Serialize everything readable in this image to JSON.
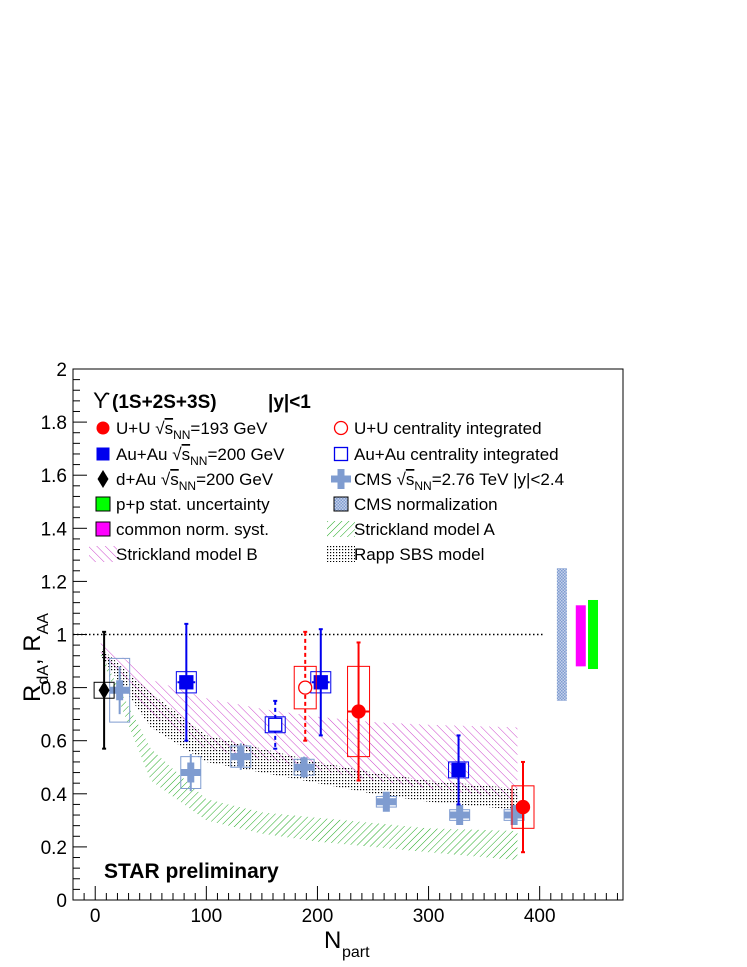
{
  "chart_data": {
    "type": "scatter",
    "title": "",
    "xlabel": {
      "main": "N",
      "sub": "part"
    },
    "ylabel": {
      "part1": "R",
      "sub1": "dA",
      "sep": ", R",
      "sub2": "AA"
    },
    "xlim": [
      -20,
      475
    ],
    "ylim": [
      0,
      2
    ],
    "xticks": [
      0,
      100,
      200,
      300,
      400
    ],
    "yticks": [
      0,
      0.2,
      0.4,
      0.6,
      0.8,
      1,
      1.2,
      1.4,
      1.6,
      1.8,
      2
    ],
    "reference_line": 1,
    "header": {
      "upsilon": "ϒ",
      "state": "(1S+2S+3S)",
      "rapidity": "|y|<1"
    },
    "annotation": "STAR preliminary",
    "legend": [
      {
        "id": "uu",
        "pre": "U+U ",
        "sqrt": "s",
        "sub": "NN",
        "post": "=193 GeV"
      },
      {
        "id": "uu_int",
        "pre": "U+U centrality integrated"
      },
      {
        "id": "auau",
        "pre": "Au+Au ",
        "sqrt": "s",
        "sub": "NN",
        "post": "=200 GeV"
      },
      {
        "id": "auau_int",
        "pre": "Au+Au centrality integrated"
      },
      {
        "id": "dau",
        "pre": "d+Au ",
        "sqrt": "s",
        "sub": "NN",
        "post": "=200 GeV"
      },
      {
        "id": "cms",
        "pre": "CMS ",
        "sqrt": "s",
        "sub": "NN",
        "post": "=2.76 TeV |y|<2.4"
      },
      {
        "id": "pp",
        "pre": "p+p stat. uncertainty"
      },
      {
        "id": "cms_norm",
        "pre": "CMS normalization"
      },
      {
        "id": "norm",
        "pre": "common norm. syst."
      },
      {
        "id": "strA",
        "pre": "Strickland model A"
      },
      {
        "id": "strB",
        "pre": "Strickland model B"
      },
      {
        "id": "rapp",
        "pre": "Rapp SBS model"
      }
    ],
    "colors": {
      "uu": "#ff0000",
      "auau": "#0000ee",
      "dau": "#000000",
      "cms": "#7f9cd0",
      "pp": "#00ff00",
      "norm": "#ff00ff",
      "strA": "#22aa22",
      "strB": "#cc44cc",
      "rapp": "#000000",
      "cms_norm": "#7f9cd0"
    },
    "series": [
      {
        "name": "U+U √sNN=193 GeV",
        "points": [
          {
            "x": 237,
            "y": 0.71,
            "xerr": 10,
            "err_lo": 0.26,
            "err_hi": 0.26,
            "sys": 0.17
          },
          {
            "x": 385,
            "y": 0.35,
            "xerr": 6,
            "err_lo": 0.17,
            "err_hi": 0.17,
            "sys": 0.08
          }
        ]
      },
      {
        "name": "U+U centrality integrated",
        "points": [
          {
            "x": 189,
            "y": 0.8,
            "err_lo": 0.2,
            "err_hi": 0.21,
            "sys": 0.08
          }
        ]
      },
      {
        "name": "Au+Au √sNN=200 GeV",
        "points": [
          {
            "x": 82,
            "y": 0.82,
            "xerr": 8,
            "err_lo": 0.22,
            "err_hi": 0.22,
            "sys": 0.04
          },
          {
            "x": 203,
            "y": 0.82,
            "xerr": 8,
            "err_lo": 0.2,
            "err_hi": 0.2,
            "sys": 0.04
          },
          {
            "x": 327,
            "y": 0.49,
            "xerr": 6,
            "err_lo": 0.13,
            "err_hi": 0.13,
            "sys": 0.03
          }
        ]
      },
      {
        "name": "Au+Au centrality integrated",
        "points": [
          {
            "x": 162,
            "y": 0.66,
            "err_lo": 0.09,
            "err_hi": 0.09,
            "sys": 0.03
          }
        ]
      },
      {
        "name": "d+Au √sNN=200 GeV",
        "points": [
          {
            "x": 8,
            "y": 0.79,
            "err_lo": 0.22,
            "err_hi": 0.22,
            "sys": 0.03
          }
        ]
      },
      {
        "name": "CMS √sNN=2.76 TeV |y|<2.4",
        "points": [
          {
            "x": 22,
            "y": 0.79,
            "err": 0.09,
            "sys": 0.12
          },
          {
            "x": 86,
            "y": 0.48,
            "err": 0.07,
            "sys": 0.06
          },
          {
            "x": 131,
            "y": 0.54,
            "err": 0.05,
            "sys": 0.04
          },
          {
            "x": 188,
            "y": 0.5,
            "err": 0.04,
            "sys": 0.03
          },
          {
            "x": 262,
            "y": 0.37,
            "err": 0.02,
            "sys": 0.02
          },
          {
            "x": 328,
            "y": 0.32,
            "err": 0.03,
            "sys": 0.02
          },
          {
            "x": 377,
            "y": 0.32,
            "err": 0.03,
            "sys": 0.02
          }
        ]
      }
    ],
    "bands": [
      {
        "name": "Strickland model B",
        "upper": [
          [
            5,
            0.98
          ],
          [
            50,
            0.83
          ],
          [
            100,
            0.76
          ],
          [
            150,
            0.72
          ],
          [
            200,
            0.69
          ],
          [
            250,
            0.67
          ],
          [
            300,
            0.66
          ],
          [
            380,
            0.65
          ]
        ],
        "lower": [
          [
            5,
            0.93
          ],
          [
            50,
            0.7
          ],
          [
            100,
            0.57
          ],
          [
            150,
            0.53
          ],
          [
            200,
            0.49
          ],
          [
            250,
            0.45
          ],
          [
            300,
            0.42
          ],
          [
            380,
            0.38
          ]
        ]
      },
      {
        "name": "Strickland model A",
        "upper": [
          [
            5,
            0.93
          ],
          [
            50,
            0.57
          ],
          [
            100,
            0.38
          ],
          [
            150,
            0.33
          ],
          [
            200,
            0.31
          ],
          [
            250,
            0.29
          ],
          [
            300,
            0.27
          ],
          [
            380,
            0.26
          ]
        ],
        "lower": [
          [
            5,
            0.92
          ],
          [
            50,
            0.45
          ],
          [
            100,
            0.3
          ],
          [
            150,
            0.25
          ],
          [
            200,
            0.22
          ],
          [
            250,
            0.2
          ],
          [
            300,
            0.18
          ],
          [
            380,
            0.15
          ]
        ]
      },
      {
        "name": "Rapp SBS model",
        "upper": [
          [
            5,
            0.95
          ],
          [
            50,
            0.78
          ],
          [
            100,
            0.62
          ],
          [
            150,
            0.57
          ],
          [
            200,
            0.52
          ],
          [
            250,
            0.48
          ],
          [
            300,
            0.45
          ],
          [
            380,
            0.42
          ]
        ],
        "lower": [
          [
            5,
            0.92
          ],
          [
            50,
            0.65
          ],
          [
            100,
            0.52
          ],
          [
            150,
            0.48
          ],
          [
            200,
            0.44
          ],
          [
            250,
            0.4
          ],
          [
            300,
            0.37
          ],
          [
            380,
            0.34
          ]
        ]
      }
    ],
    "norm_bars": [
      {
        "name": "CMS normalization",
        "x": 420,
        "y_lo": 0.75,
        "y_hi": 1.25
      },
      {
        "name": "common norm. syst.",
        "x": 437,
        "y_lo": 0.88,
        "y_hi": 1.11
      },
      {
        "name": "p+p stat. uncertainty",
        "x": 448,
        "y_lo": 0.87,
        "y_hi": 1.13
      }
    ]
  }
}
